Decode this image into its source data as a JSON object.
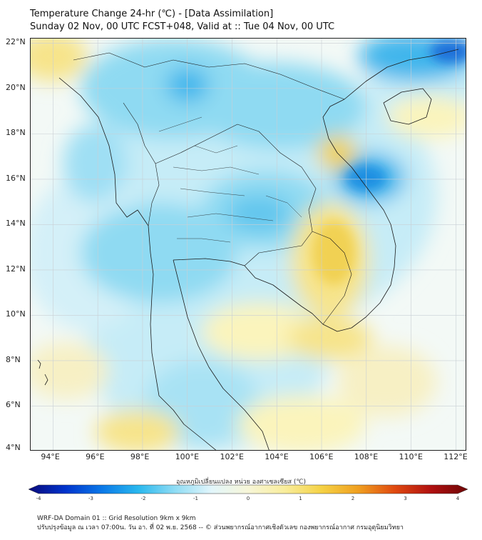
{
  "header": {
    "title_line1": "Temperature Change 24-hr (℃) - [Data Assimilation]",
    "title_line2": "Sunday 02 Nov, 00 UTC FCST+048, Valid at :: Tue 04 Nov, 00 UTC"
  },
  "map": {
    "lon_range": [
      93,
      112.5
    ],
    "lat_range": [
      4,
      22.2
    ],
    "lon_ticks": [
      "94°E",
      "96°E",
      "98°E",
      "100°E",
      "102°E",
      "104°E",
      "106°E",
      "108°E",
      "110°E",
      "112°E"
    ],
    "lat_ticks": [
      "22°N",
      "20°N",
      "18°N",
      "16°N",
      "14°N",
      "12°N",
      "10°N",
      "8°N",
      "6°N",
      "4°N"
    ],
    "colors": {
      "background": "#f3f9f6",
      "light_cyan": "#c6ecf7",
      "cyan": "#8fdaf2",
      "blue": "#3fb6ec",
      "dark_blue": "#1e6fd9",
      "light_yellow": "#fbf4bc",
      "yellow": "#f7e48a",
      "gold": "#f1d152",
      "grid": "#c9cfd4",
      "coast": "#1a1a1a"
    }
  },
  "colorbar": {
    "title": "อุณหภูมิเปลี่ยนแปลง หน่วย องศาเซลเซียส (℃)",
    "ticks": [
      "-4",
      "-3",
      "-2",
      "-1",
      "0",
      "1",
      "2",
      "3",
      "4"
    ],
    "min": -4,
    "max": 4,
    "stops": [
      "#0a0a7a",
      "#0033cc",
      "#0a78e8",
      "#29b8ee",
      "#8fdcf4",
      "#e2f6fb",
      "#f7f6d8",
      "#f8ed9c",
      "#f5d245",
      "#f0a020",
      "#e04a10",
      "#b01010",
      "#6e0606"
    ]
  },
  "footer": {
    "line1": "WRF-DA Domain 01 :: Grid Resolution 9km x 9km",
    "line2": "ปรับปรุงข้อมูล ณ เวลา 07:00น. วัน อา. ที่ 02 พ.ย. 2568 -- © ส่วนพยากรณ์อากาศเชิงตัวเลข กองพยากรณ์อากาศ กรมอุตุนิยมวิทยา"
  }
}
